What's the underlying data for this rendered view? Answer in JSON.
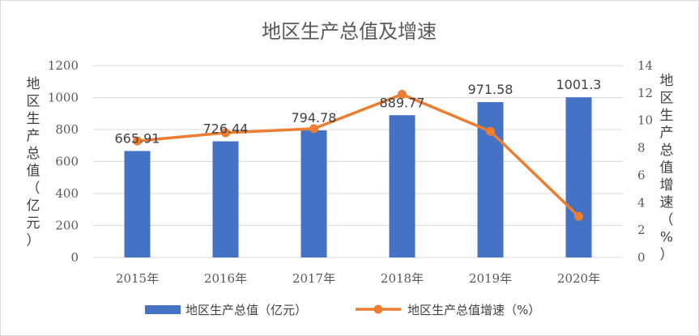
{
  "chart_data": {
    "type": "bar",
    "title": "地区生产总值及增速",
    "categories": [
      "2015年",
      "2016年",
      "2017年",
      "2018年",
      "2019年",
      "2020年"
    ],
    "series": [
      {
        "name": "地区生产总值（亿元）",
        "type": "bar",
        "axis": "left",
        "values": [
          665.91,
          726.44,
          794.78,
          889.77,
          971.58,
          1001.3
        ],
        "labels": [
          "665.91",
          "726.44",
          "794.78",
          "889.77",
          "971.58",
          "1001.3"
        ],
        "color": "#4472c4"
      },
      {
        "name": "地区生产总值增速（%）",
        "type": "line",
        "axis": "right",
        "values": [
          8.5,
          9.1,
          9.4,
          11.9,
          9.2,
          3.0
        ],
        "color": "#ed7d31"
      }
    ],
    "ylabel": "地区生产总值（亿元）",
    "ylabel_right": "地区生产总值增速（%）",
    "ylim": [
      0,
      1200
    ],
    "ylim_right": [
      0,
      14
    ],
    "yticks": [
      "0",
      "200",
      "400",
      "600",
      "800",
      "1000",
      "1200"
    ],
    "yticks_right": [
      "0",
      "2",
      "4",
      "6",
      "8",
      "10",
      "12",
      "14"
    ],
    "grid": true,
    "legend_position": "bottom",
    "gridline_color": "#d9d9d9"
  }
}
